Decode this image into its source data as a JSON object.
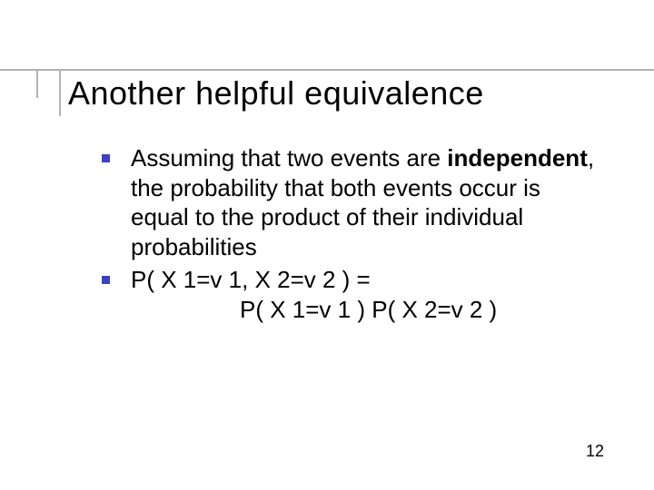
{
  "title": "Another helpful equivalence",
  "bullets": [
    {
      "prefix": "Assuming that two events are ",
      "bold": "independent",
      "suffix": ", the probability that both events occur is equal to the product of their individual probabilities"
    },
    {
      "line1": "P( X 1=v 1, X 2=v 2 ) =",
      "line2": "P( X 1=v 1 ) P( X 2=v 2 )"
    }
  ],
  "page_number": "12",
  "colors": {
    "bullet_square": "#4040c2",
    "rule": "#b2b2b2",
    "text": "#000000",
    "background": "#ffffff"
  }
}
